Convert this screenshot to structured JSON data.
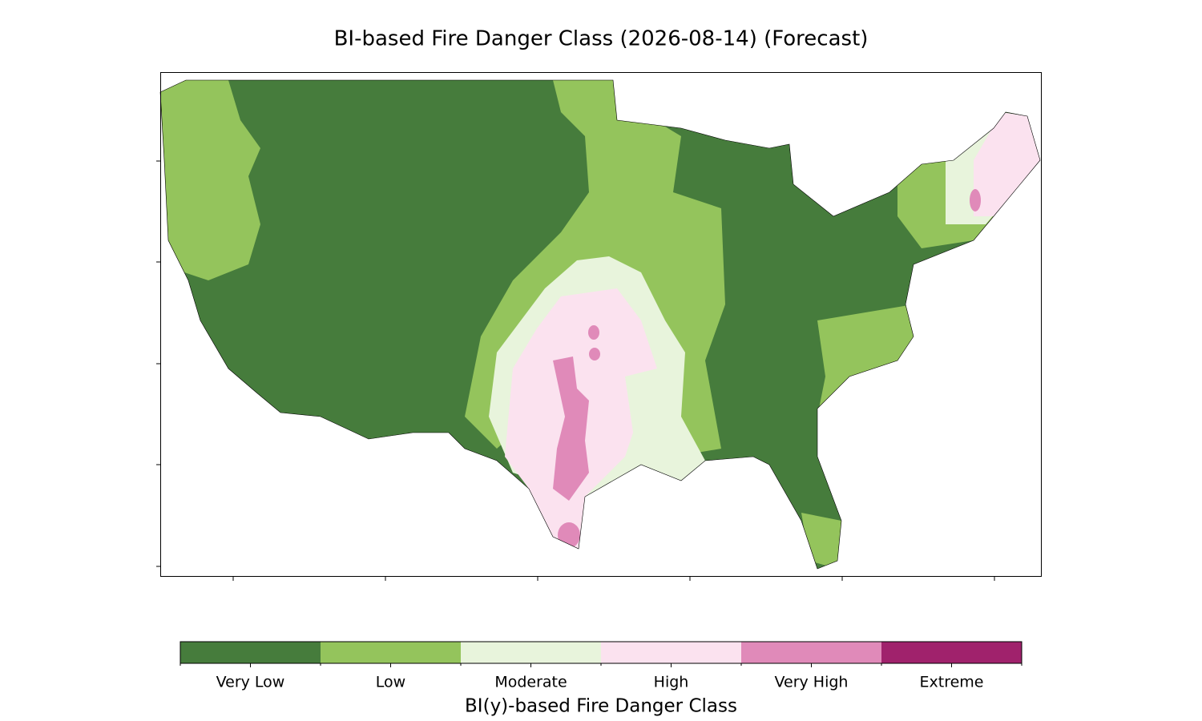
{
  "title": "BI-based Fire Danger Class (2026-08-14) (Forecast)",
  "colorbar": {
    "label": "BI(y)-based Fire Danger Class",
    "classes": [
      {
        "name": "Very Low",
        "color": "#467c3c"
      },
      {
        "name": "Low",
        "color": "#94c45c"
      },
      {
        "name": "Moderate",
        "color": "#e8f4dc"
      },
      {
        "name": "High",
        "color": "#fbe2ef"
      },
      {
        "name": "Very High",
        "color": "#e08ab9"
      },
      {
        "name": "Extreme",
        "color": "#a0226c"
      }
    ]
  }
}
